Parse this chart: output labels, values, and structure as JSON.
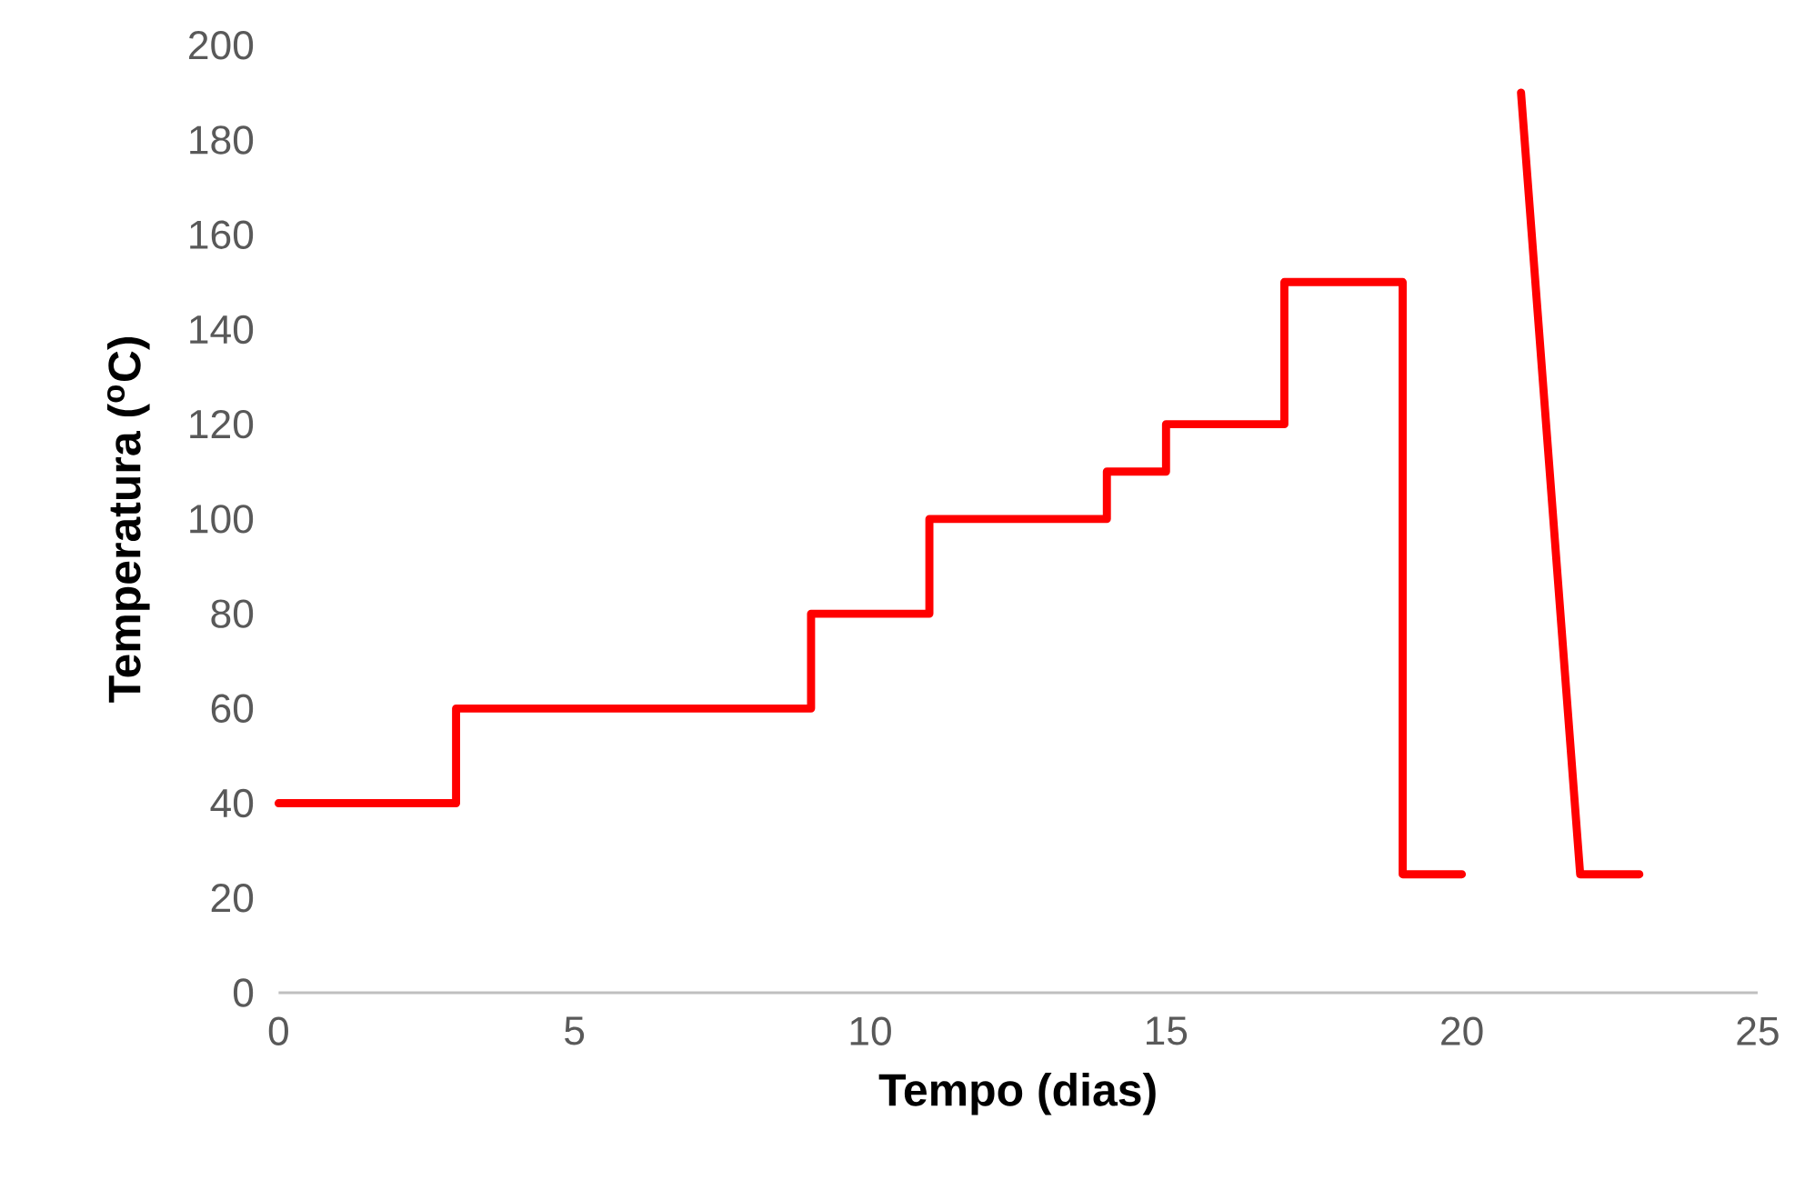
{
  "chart_data": {
    "type": "line",
    "xlabel": "Tempo (dias)",
    "ylabel": "Temperatura ($^{o}$C)",
    "x": [
      0,
      3,
      3,
      9,
      9,
      11,
      11,
      14,
      14,
      15,
      15,
      17,
      17,
      19,
      19,
      20,
      20.5,
      21,
      22,
      23
    ],
    "series": [
      {
        "color": "#ff0000",
        "values": [
          40,
          40,
          60,
          60,
          80,
          80,
          100,
          100,
          110,
          110,
          120,
          120,
          150,
          150,
          25,
          25,
          null,
          190,
          25,
          25
        ]
      }
    ],
    "xlim": [
      0,
      25
    ],
    "xticks": [
      0,
      5,
      10,
      15,
      20,
      25
    ],
    "ylim": [
      0,
      200
    ],
    "yticks": [
      0,
      20,
      40,
      60,
      80,
      100,
      120,
      140,
      160,
      180,
      200
    ],
    "grid": false,
    "marker": "none",
    "line_style": "solid"
  }
}
